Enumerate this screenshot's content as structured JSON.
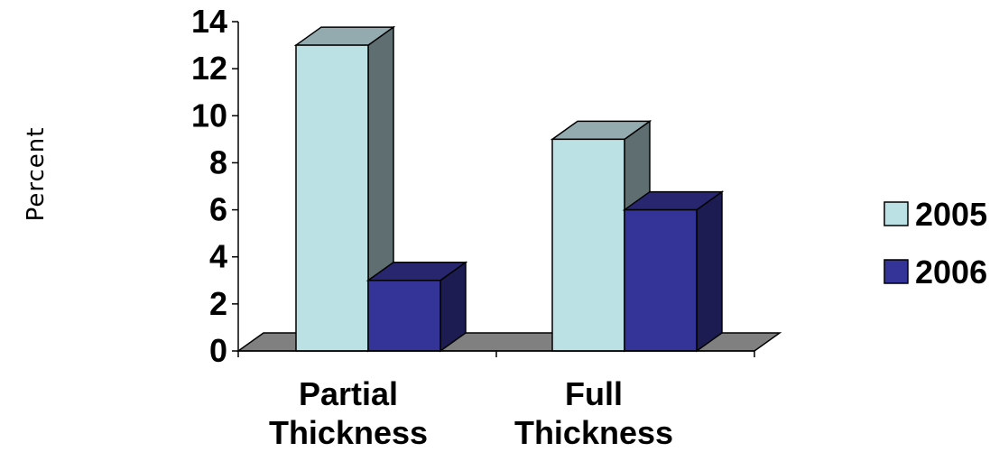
{
  "chart_data": {
    "type": "bar",
    "categories": [
      [
        "Partial",
        "Thickness"
      ],
      [
        "Full",
        "Thickness"
      ]
    ],
    "series": [
      {
        "name": "2005",
        "values": [
          13,
          9
        ]
      },
      {
        "name": "2006",
        "values": [
          3,
          6
        ]
      }
    ],
    "ylabel": "Percent",
    "xlabel": "",
    "ylim": [
      0,
      14
    ],
    "yticks": [
      "0",
      "2",
      "4",
      "6",
      "8",
      "10",
      "12",
      "14"
    ],
    "style": "3d-clustered-column",
    "legend_position": "right",
    "grid": false,
    "colors": {
      "2005": {
        "front": "#BCE1E4",
        "top": "#93AAAE",
        "side": "#5E6E71"
      },
      "2006": {
        "front": "#343398",
        "top": "#27266F",
        "side": "#1D1C52"
      },
      "floor": "#808080"
    }
  }
}
